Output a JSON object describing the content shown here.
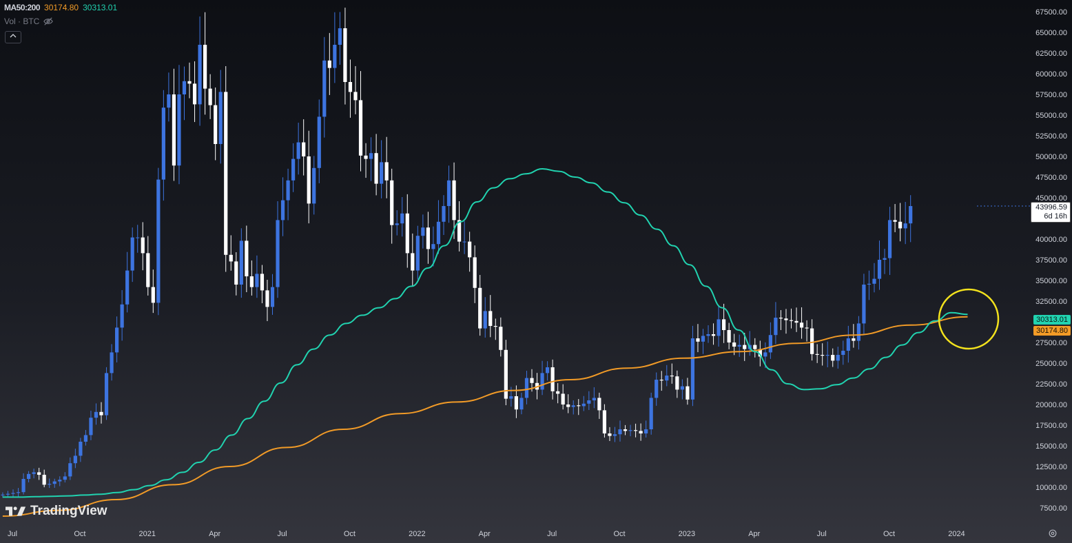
{
  "legend": {
    "label": "MA50:200",
    "ma200_value": "30174.80",
    "ma50_value": "30313.01",
    "volume_label": "Vol · BTC"
  },
  "current_price": {
    "value": "43996.59",
    "countdown": "6d 16h"
  },
  "ma_tags": {
    "ma50": "30313.01",
    "ma200": "30174.80"
  },
  "logo_text": "TradingView",
  "colors": {
    "up": "#3d74e0",
    "down": "#ffffff",
    "ma50": "#21d3b0",
    "ma200": "#f29b27",
    "highlight": "#f3e21d"
  },
  "chart_data": {
    "type": "candlestick",
    "ylim": [
      5000,
      70000
    ],
    "y_ticks": [
      7500,
      10000,
      12500,
      15000,
      17500,
      20000,
      22500,
      25000,
      27500,
      30000,
      32500,
      35000,
      37500,
      40000,
      42500,
      45000,
      47500,
      50000,
      52500,
      55000,
      57500,
      60000,
      62500,
      65000,
      67500
    ],
    "y_tick_labels": [
      "7500.00",
      "10000.00",
      "12500.00",
      "15000.00",
      "17500.00",
      "20000.00",
      "22500.00",
      "25000.00",
      "27500.00",
      "30000.00",
      "32500.00",
      "35000.00",
      "37500.00",
      "40000.00",
      "42500.00",
      "45000.00",
      "47500.00",
      "50000.00",
      "52500.00",
      "55000.00",
      "57500.00",
      "60000.00",
      "62500.00",
      "65000.00",
      "67500.00"
    ],
    "x_ticks": [
      {
        "label": "Jul",
        "week": 0
      },
      {
        "label": "Oct",
        "week": 13
      },
      {
        "label": "2021",
        "week": 26
      },
      {
        "label": "Apr",
        "week": 39
      },
      {
        "label": "Jul",
        "week": 52
      },
      {
        "label": "Oct",
        "week": 65
      },
      {
        "label": "2022",
        "week": 78
      },
      {
        "label": "Apr",
        "week": 91
      },
      {
        "label": "Jul",
        "week": 104
      },
      {
        "label": "Oct",
        "week": 117
      },
      {
        "label": "2023",
        "week": 130
      },
      {
        "label": "Apr",
        "week": 143
      },
      {
        "label": "Jul",
        "week": 156
      },
      {
        "label": "Oct",
        "week": 169
      },
      {
        "label": "2024",
        "week": 182
      }
    ],
    "period": "weekly",
    "closes": [
      9100,
      9200,
      9300,
      9400,
      11000,
      11600,
      11800,
      11500,
      10300,
      10400,
      10700,
      10900,
      11300,
      12900,
      13800,
      15500,
      16300,
      18400,
      19100,
      18700,
      23800,
      26300,
      29300,
      32100,
      36200,
      40200,
      40200,
      38300,
      34200,
      32300,
      47200,
      55900,
      57500,
      48900,
      57500,
      59100,
      58800,
      56300,
      63500,
      58200,
      56200,
      51500,
      57800,
      38100,
      37300,
      34500,
      39800,
      35500,
      34200,
      35800,
      33800,
      31800,
      34200,
      42300,
      44700,
      47100,
      49700,
      51700,
      50000,
      44300,
      48600,
      54800,
      61600,
      60700,
      63500,
      65500,
      59000,
      57800,
      56800,
      50100,
      49700,
      50400,
      46700,
      49300,
      47100,
      41700,
      41900,
      43100,
      38300,
      36200,
      40400,
      41400,
      38800,
      39400,
      42100,
      44000,
      47100,
      42300,
      39700,
      39700,
      37800,
      34100,
      29200,
      31300,
      29500,
      29400,
      26600,
      20700,
      21000,
      19400,
      20800,
      23200,
      22600,
      21800,
      23800,
      24500,
      21600,
      21300,
      20000,
      19700,
      19900,
      19800,
      20100,
      20500,
      20800,
      19300,
      16500,
      16200,
      16400,
      17000,
      16800,
      16900,
      16800,
      16500,
      17000,
      20800,
      23000,
      22900,
      23500,
      23400,
      21800,
      22200,
      20600,
      28000,
      27600,
      28300,
      28500,
      28300,
      30300,
      29000,
      27500,
      27000,
      27200,
      26700,
      27200,
      26700,
      25800,
      26300,
      28400,
      30500,
      30400,
      30200,
      30100,
      29900,
      29300,
      29200,
      26100,
      26000,
      25900,
      26000,
      25300,
      26000,
      26500,
      28000,
      27700,
      29800,
      34500,
      34600,
      35200,
      37500,
      37700,
      42300,
      42100,
      41300,
      41900,
      43996.59
    ],
    "ma_series": [
      {
        "name": "MA50",
        "values_start_week": 0,
        "values": [
          8800,
          8800,
          8850,
          8900,
          8950,
          9050,
          9150,
          9350,
          9700,
          10200,
          10900,
          11800,
          13000,
          14500,
          16300,
          18300,
          20400,
          22600,
          24800,
          26700,
          28400,
          29800,
          30800,
          31700,
          32800,
          34300,
          36500,
          39200,
          42100,
          44500,
          46200,
          47300,
          47900,
          48500,
          48200,
          47500,
          46800,
          45700,
          44400,
          42900,
          41200,
          39200,
          36900,
          34300,
          31700,
          29000,
          26400,
          24200,
          22500,
          21800,
          21900,
          22400,
          23200,
          24300,
          25700,
          27200,
          28700,
          30100,
          31100,
          30900
        ]
      },
      {
        "name": "MA200",
        "values": [
          6500,
          7200,
          8500,
          10300,
          12500,
          14800,
          17000,
          18900,
          20300,
          21700,
          23000,
          24400,
          25600,
          26400,
          27400,
          28400,
          29600,
          30600
        ]
      }
    ]
  }
}
